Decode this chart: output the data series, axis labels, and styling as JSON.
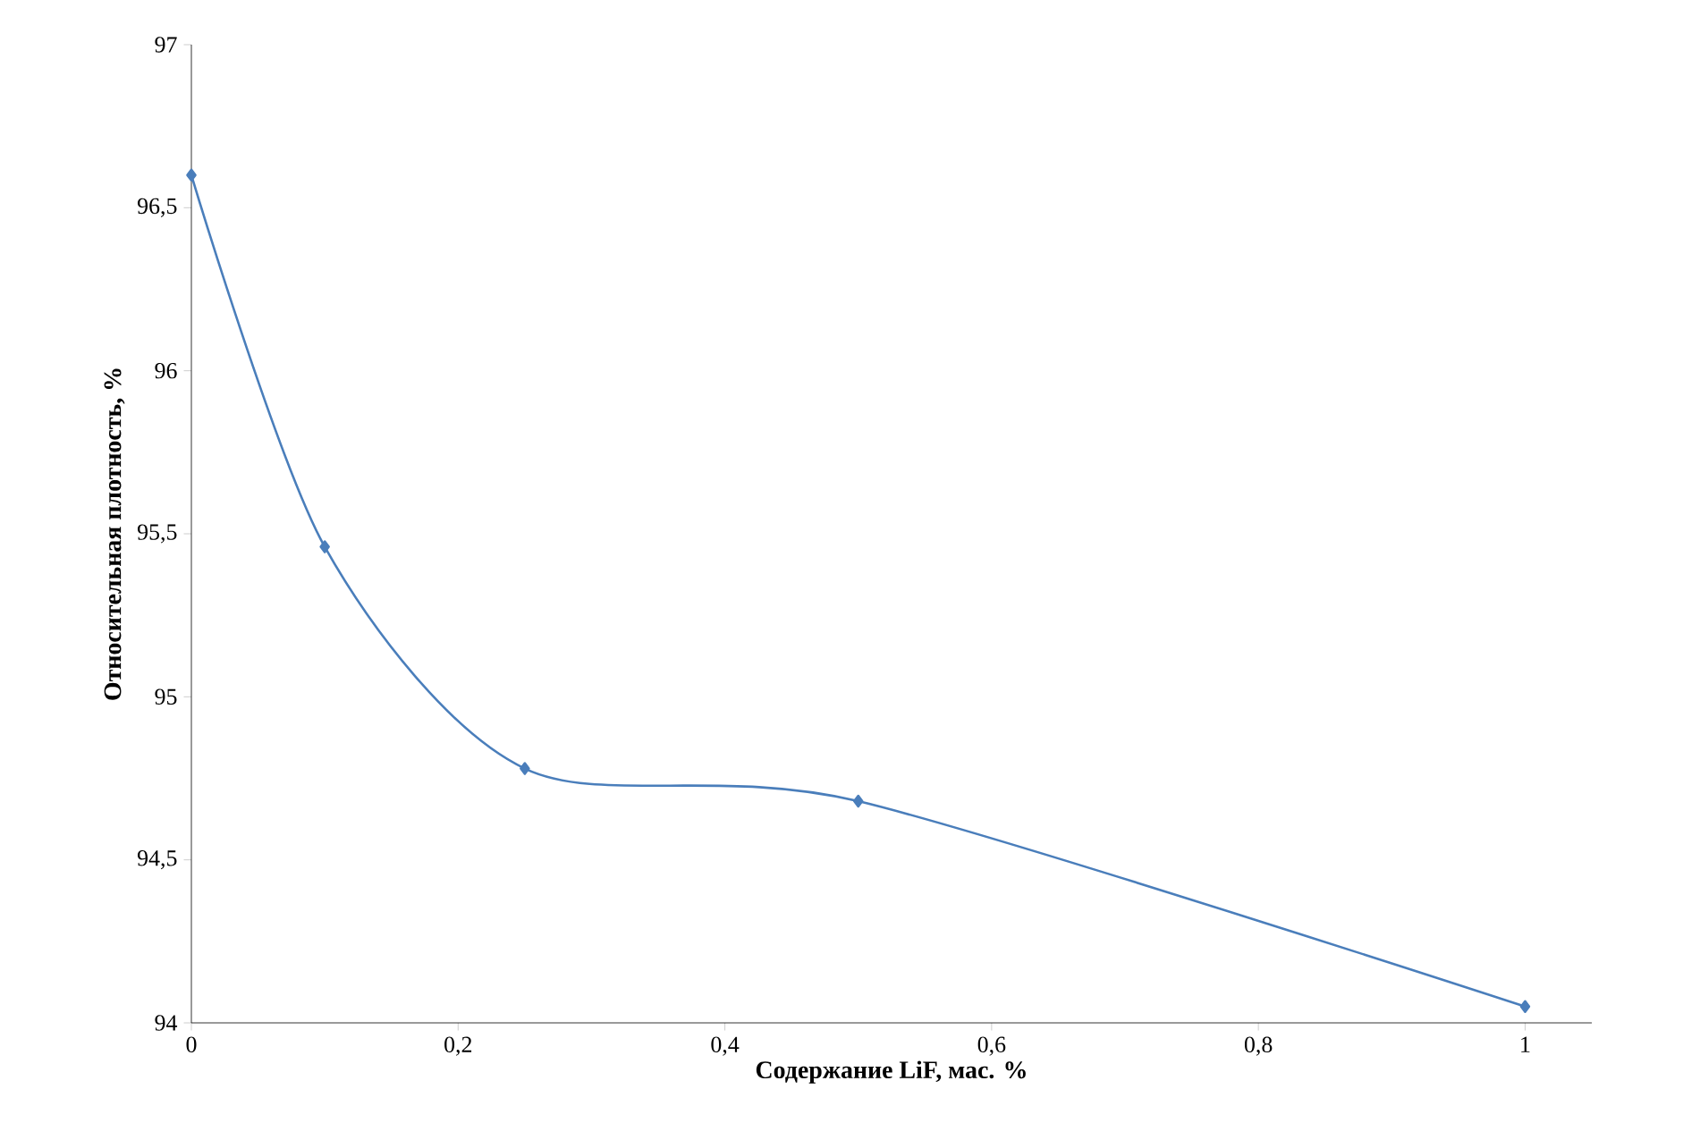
{
  "chart_data": {
    "type": "line",
    "xlabel": "Содержание LiF, мас. %",
    "ylabel": "Относительная плотность, %",
    "x": [
      0,
      0.1,
      0.25,
      0.5,
      1
    ],
    "series": [
      {
        "color": "#4a7ebb",
        "values": [
          96.6,
          95.46,
          94.78,
          94.68,
          94.05
        ]
      }
    ],
    "xlim": [
      0,
      1.05
    ],
    "ylim": [
      94,
      97
    ],
    "xticks": [
      0,
      {
        "value": 0.2,
        "label": "0,2"
      },
      {
        "value": 0.4,
        "label": "0,4"
      },
      {
        "value": 0.6,
        "label": "0,6"
      },
      {
        "value": 0.8,
        "label": "0,8"
      },
      1
    ],
    "yticks": [
      94,
      {
        "value": 94.5,
        "label": "94,5"
      },
      95,
      {
        "value": 95.5,
        "label": "95,5"
      },
      96,
      {
        "value": 96.5,
        "label": "96,5"
      },
      97
    ],
    "grid": false,
    "marker": "diamond",
    "line_style": "solid"
  }
}
